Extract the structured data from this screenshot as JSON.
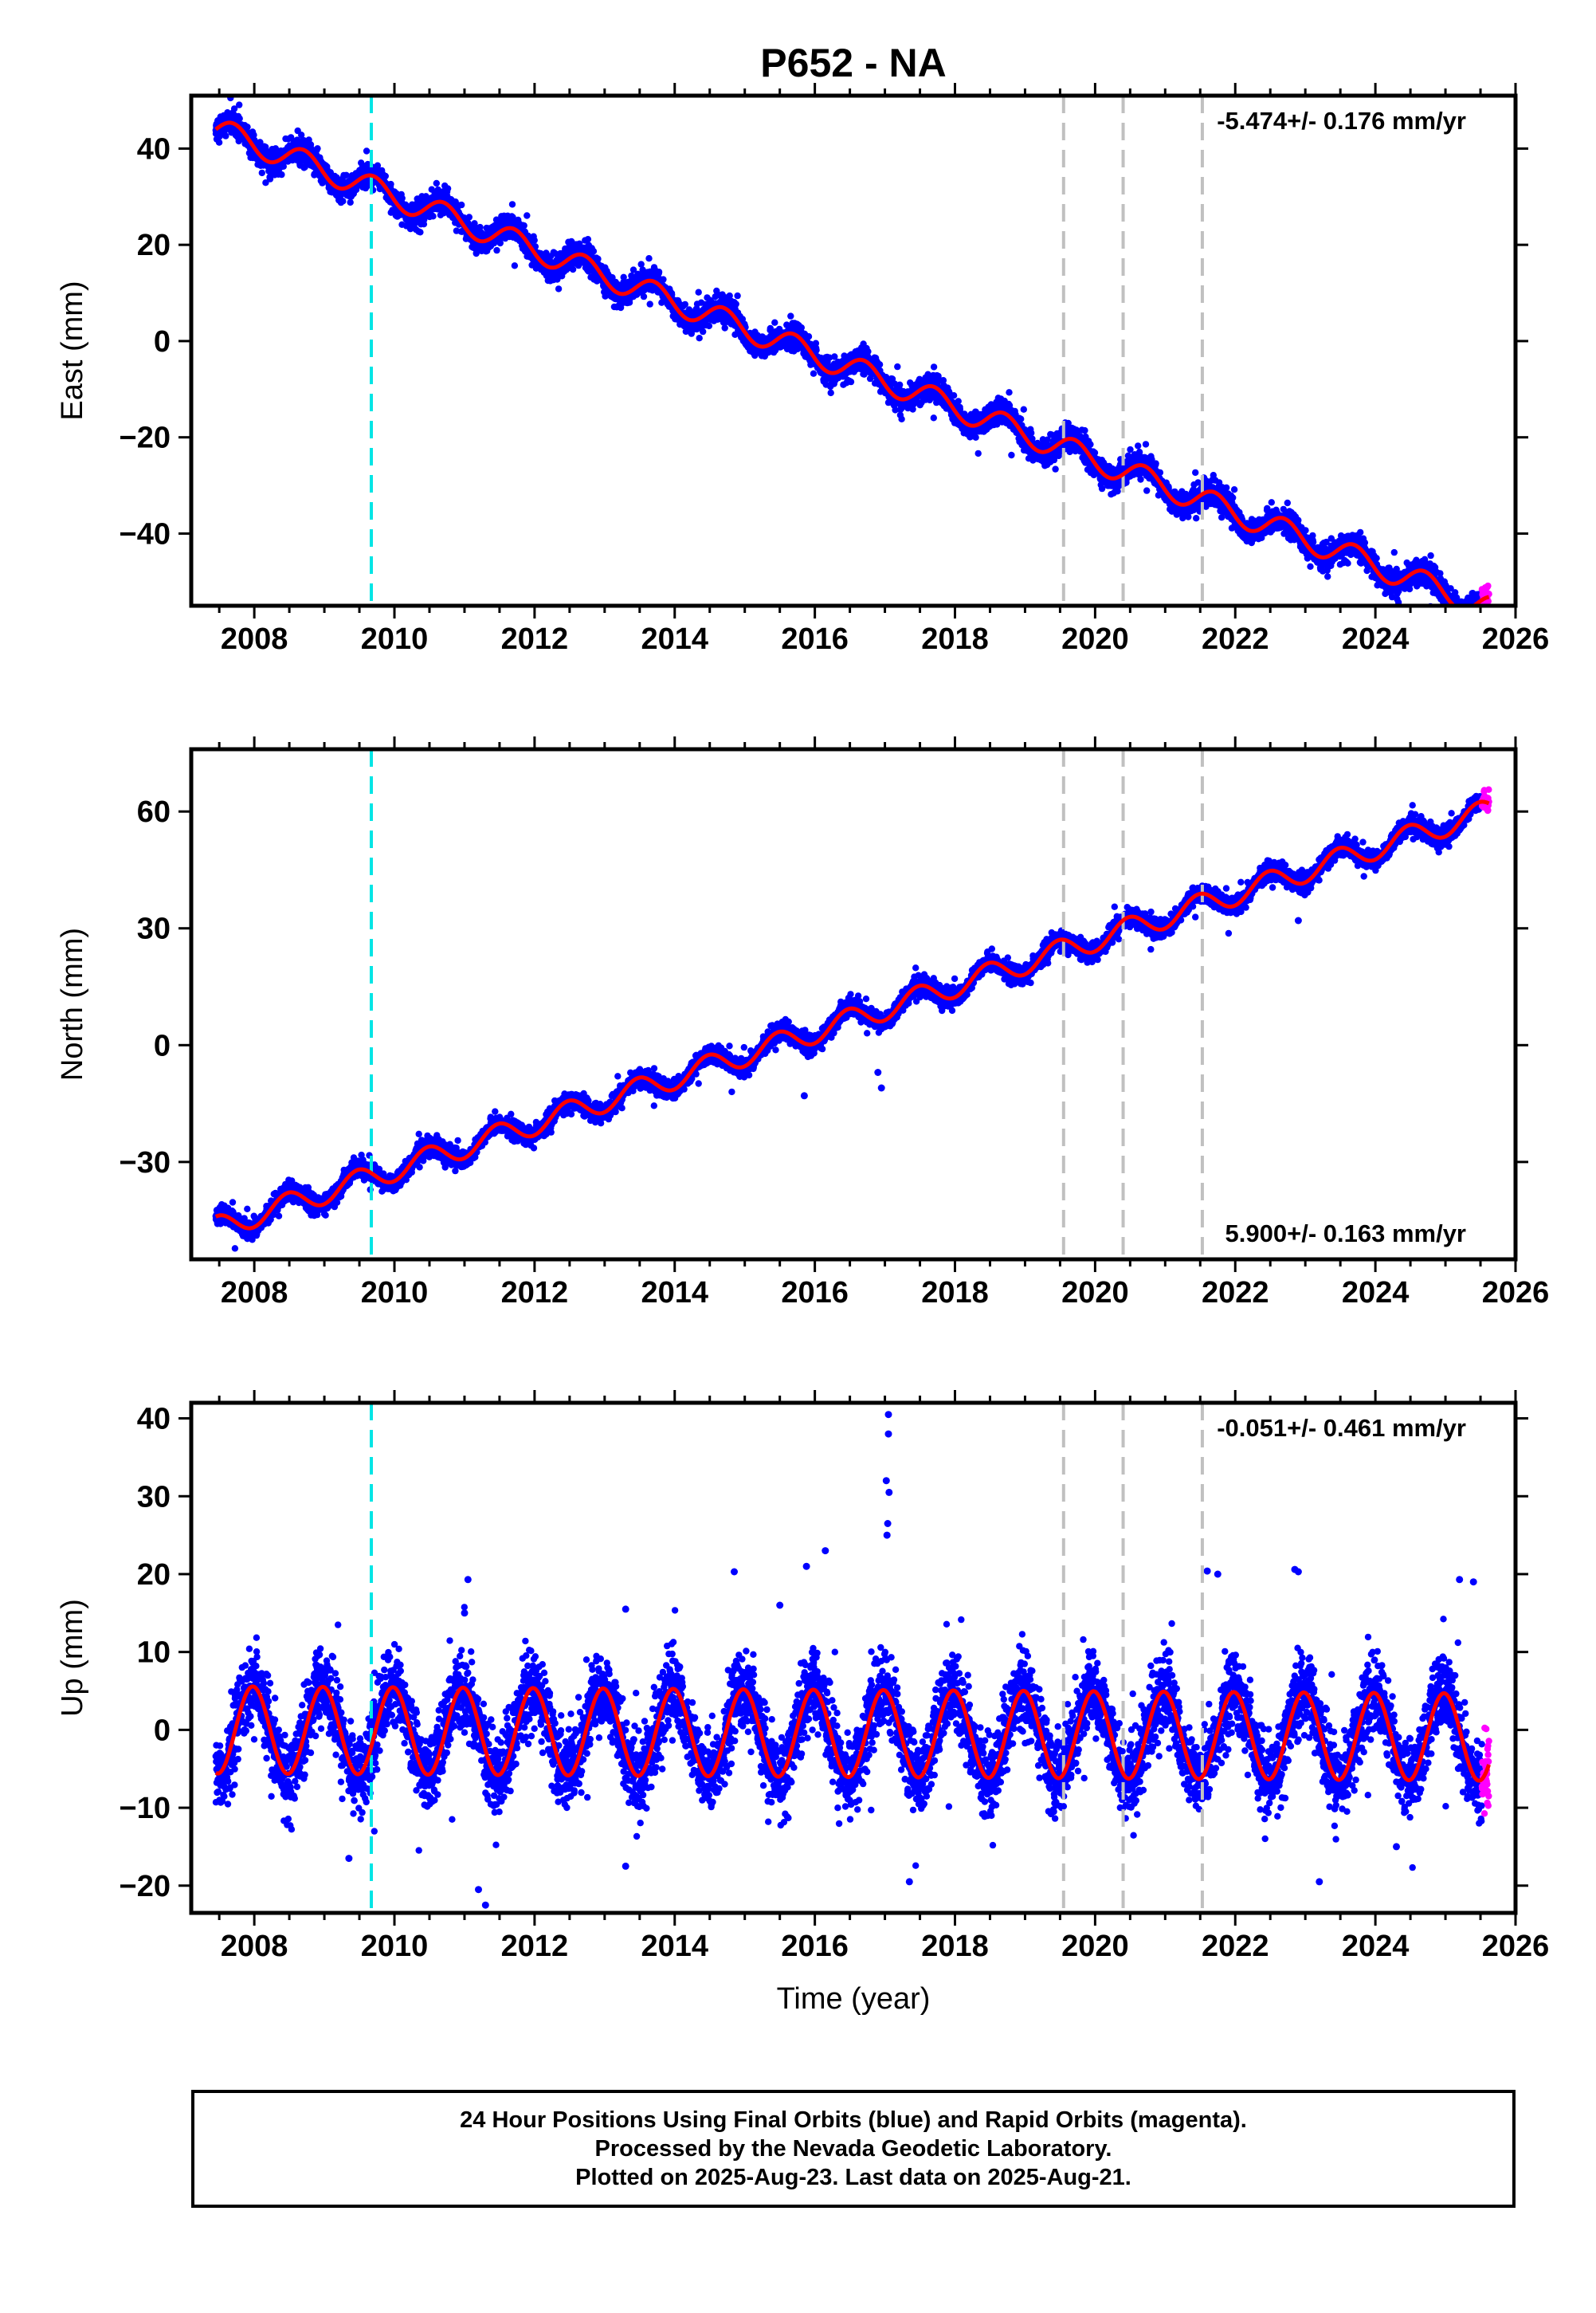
{
  "title": "P652 - NA",
  "chart_data": [
    {
      "type": "scatter",
      "name": "east",
      "ylabel": "East (mm)",
      "xlim": [
        2007.1,
        2026.0
      ],
      "ylim": [
        -55,
        51
      ],
      "yticks": [
        -40,
        -20,
        0,
        20,
        40
      ],
      "yticklabels": [
        "−40",
        "−20",
        "0",
        "20",
        "40"
      ],
      "xticks": [
        2008,
        2010,
        2012,
        2014,
        2016,
        2018,
        2020,
        2022,
        2024,
        2026
      ],
      "xticklabels": [
        "2008",
        "2010",
        "2012",
        "2014",
        "2016",
        "2018",
        "2020",
        "2022",
        "2024",
        "2026"
      ],
      "rate_text": "-5.474+/- 0.176 mm/yr",
      "rate_position": "top-right",
      "model": {
        "start": 2007.45,
        "end": 2025.62,
        "v0": 44.0,
        "rate": -5.474,
        "amp": 2.6,
        "phase": 0.0,
        "offsets": [
          {
            "year": 2009.67,
            "value": 0
          },
          {
            "year": 2021.55,
            "value": 0
          }
        ]
      },
      "scatter": {
        "color_final": "#0000ff",
        "color_rapid": "#ff00ff",
        "spread": 2.2,
        "outliers": []
      },
      "fit_color": "#ff0000",
      "event_lines": [
        {
          "year": 2009.67,
          "color": "#00e5e5"
        },
        {
          "year": 2019.55,
          "color": "#c0c0c0"
        },
        {
          "year": 2020.4,
          "color": "#c0c0c0"
        },
        {
          "year": 2021.53,
          "color": "#c0c0c0"
        }
      ]
    },
    {
      "type": "scatter",
      "name": "north",
      "ylabel": "North (mm)",
      "xlim": [
        2007.1,
        2026.0
      ],
      "ylim": [
        -55,
        76
      ],
      "yticks": [
        -30,
        0,
        30,
        60
      ],
      "yticklabels": [
        "−30",
        "0",
        "30",
        "60"
      ],
      "xticks": [
        2008,
        2010,
        2012,
        2014,
        2016,
        2018,
        2020,
        2022,
        2024,
        2026
      ],
      "xticklabels": [
        "2008",
        "2010",
        "2012",
        "2014",
        "2016",
        "2018",
        "2020",
        "2022",
        "2024",
        "2026"
      ],
      "rate_text": "5.900+/- 0.163 mm/yr",
      "rate_position": "bottom-right",
      "model": {
        "start": 2007.45,
        "end": 2025.62,
        "v0": -47.0,
        "rate": 5.9,
        "amp": 3.0,
        "phase": 1.4,
        "offsets": []
      },
      "scatter": {
        "color_final": "#0000ff",
        "color_rapid": "#ff00ff",
        "spread": 2.0,
        "outliers": [
          [
            2015.85,
            -13
          ],
          [
            2016.95,
            -11
          ],
          [
            2016.9,
            -7
          ],
          [
            2022.9,
            32
          ]
        ]
      },
      "fit_color": "#ff0000",
      "event_lines": [
        {
          "year": 2009.67,
          "color": "#00e5e5"
        },
        {
          "year": 2019.55,
          "color": "#c0c0c0"
        },
        {
          "year": 2020.4,
          "color": "#c0c0c0"
        },
        {
          "year": 2021.53,
          "color": "#c0c0c0"
        }
      ]
    },
    {
      "type": "scatter",
      "name": "up",
      "ylabel": "Up (mm)",
      "xlabel": "Time (year)",
      "xlim": [
        2007.1,
        2026.0
      ],
      "ylim": [
        -23.5,
        42
      ],
      "yticks": [
        -20,
        -10,
        0,
        10,
        20,
        30,
        40
      ],
      "yticklabels": [
        "−20",
        "−10",
        "0",
        "10",
        "20",
        "30",
        "40"
      ],
      "xticks": [
        2008,
        2010,
        2012,
        2014,
        2016,
        2018,
        2020,
        2022,
        2024,
        2026
      ],
      "xticklabels": [
        "2008",
        "2010",
        "2012",
        "2014",
        "2016",
        "2018",
        "2020",
        "2022",
        "2024",
        "2026"
      ],
      "rate_text": "-0.051+/- 0.461 mm/yr",
      "rate_position": "top-right",
      "model": {
        "start": 2007.45,
        "end": 2025.62,
        "v0": 0.0,
        "rate": -0.051,
        "amp": 5.6,
        "phase": -1.75,
        "offsets": []
      },
      "scatter": {
        "color_final": "#0000ff",
        "color_rapid": "#ff00ff",
        "spread": 4.2,
        "outliers": [
          [
            2017.05,
            40.5
          ],
          [
            2017.05,
            38
          ],
          [
            2017.02,
            32
          ],
          [
            2017.06,
            30.5
          ],
          [
            2017.04,
            26.5
          ],
          [
            2017.03,
            25
          ],
          [
            2016.15,
            23
          ],
          [
            2015.88,
            21
          ],
          [
            2014.85,
            20.3
          ],
          [
            2021.6,
            20.4
          ],
          [
            2021.75,
            20
          ],
          [
            2022.85,
            20.6
          ],
          [
            2022.9,
            20.3
          ],
          [
            2011.05,
            19.3
          ],
          [
            2025.2,
            19.3
          ],
          [
            2025.4,
            19
          ],
          [
            2013.3,
            15.5
          ],
          [
            2011.0,
            15
          ],
          [
            2015.5,
            16
          ],
          [
            2011.3,
            -22.5
          ],
          [
            2011.2,
            -20.5
          ],
          [
            2017.35,
            -19.5
          ],
          [
            2023.2,
            -19.5
          ],
          [
            2009.35,
            -16.5
          ],
          [
            2013.3,
            -17.5
          ],
          [
            2024.3,
            -15
          ]
        ]
      },
      "fit_color": "#ff0000",
      "event_lines": [
        {
          "year": 2009.67,
          "color": "#00e5e5"
        },
        {
          "year": 2019.55,
          "color": "#c0c0c0"
        },
        {
          "year": 2020.4,
          "color": "#c0c0c0"
        },
        {
          "year": 2021.53,
          "color": "#c0c0c0"
        }
      ]
    }
  ],
  "footer": {
    "line1": "24 Hour Positions Using Final Orbits (blue) and Rapid Orbits (magenta).",
    "line2": "Processed by the Nevada Geodetic Laboratory.",
    "line3": "Plotted on 2025-Aug-23. Last data on 2025-Aug-21."
  }
}
